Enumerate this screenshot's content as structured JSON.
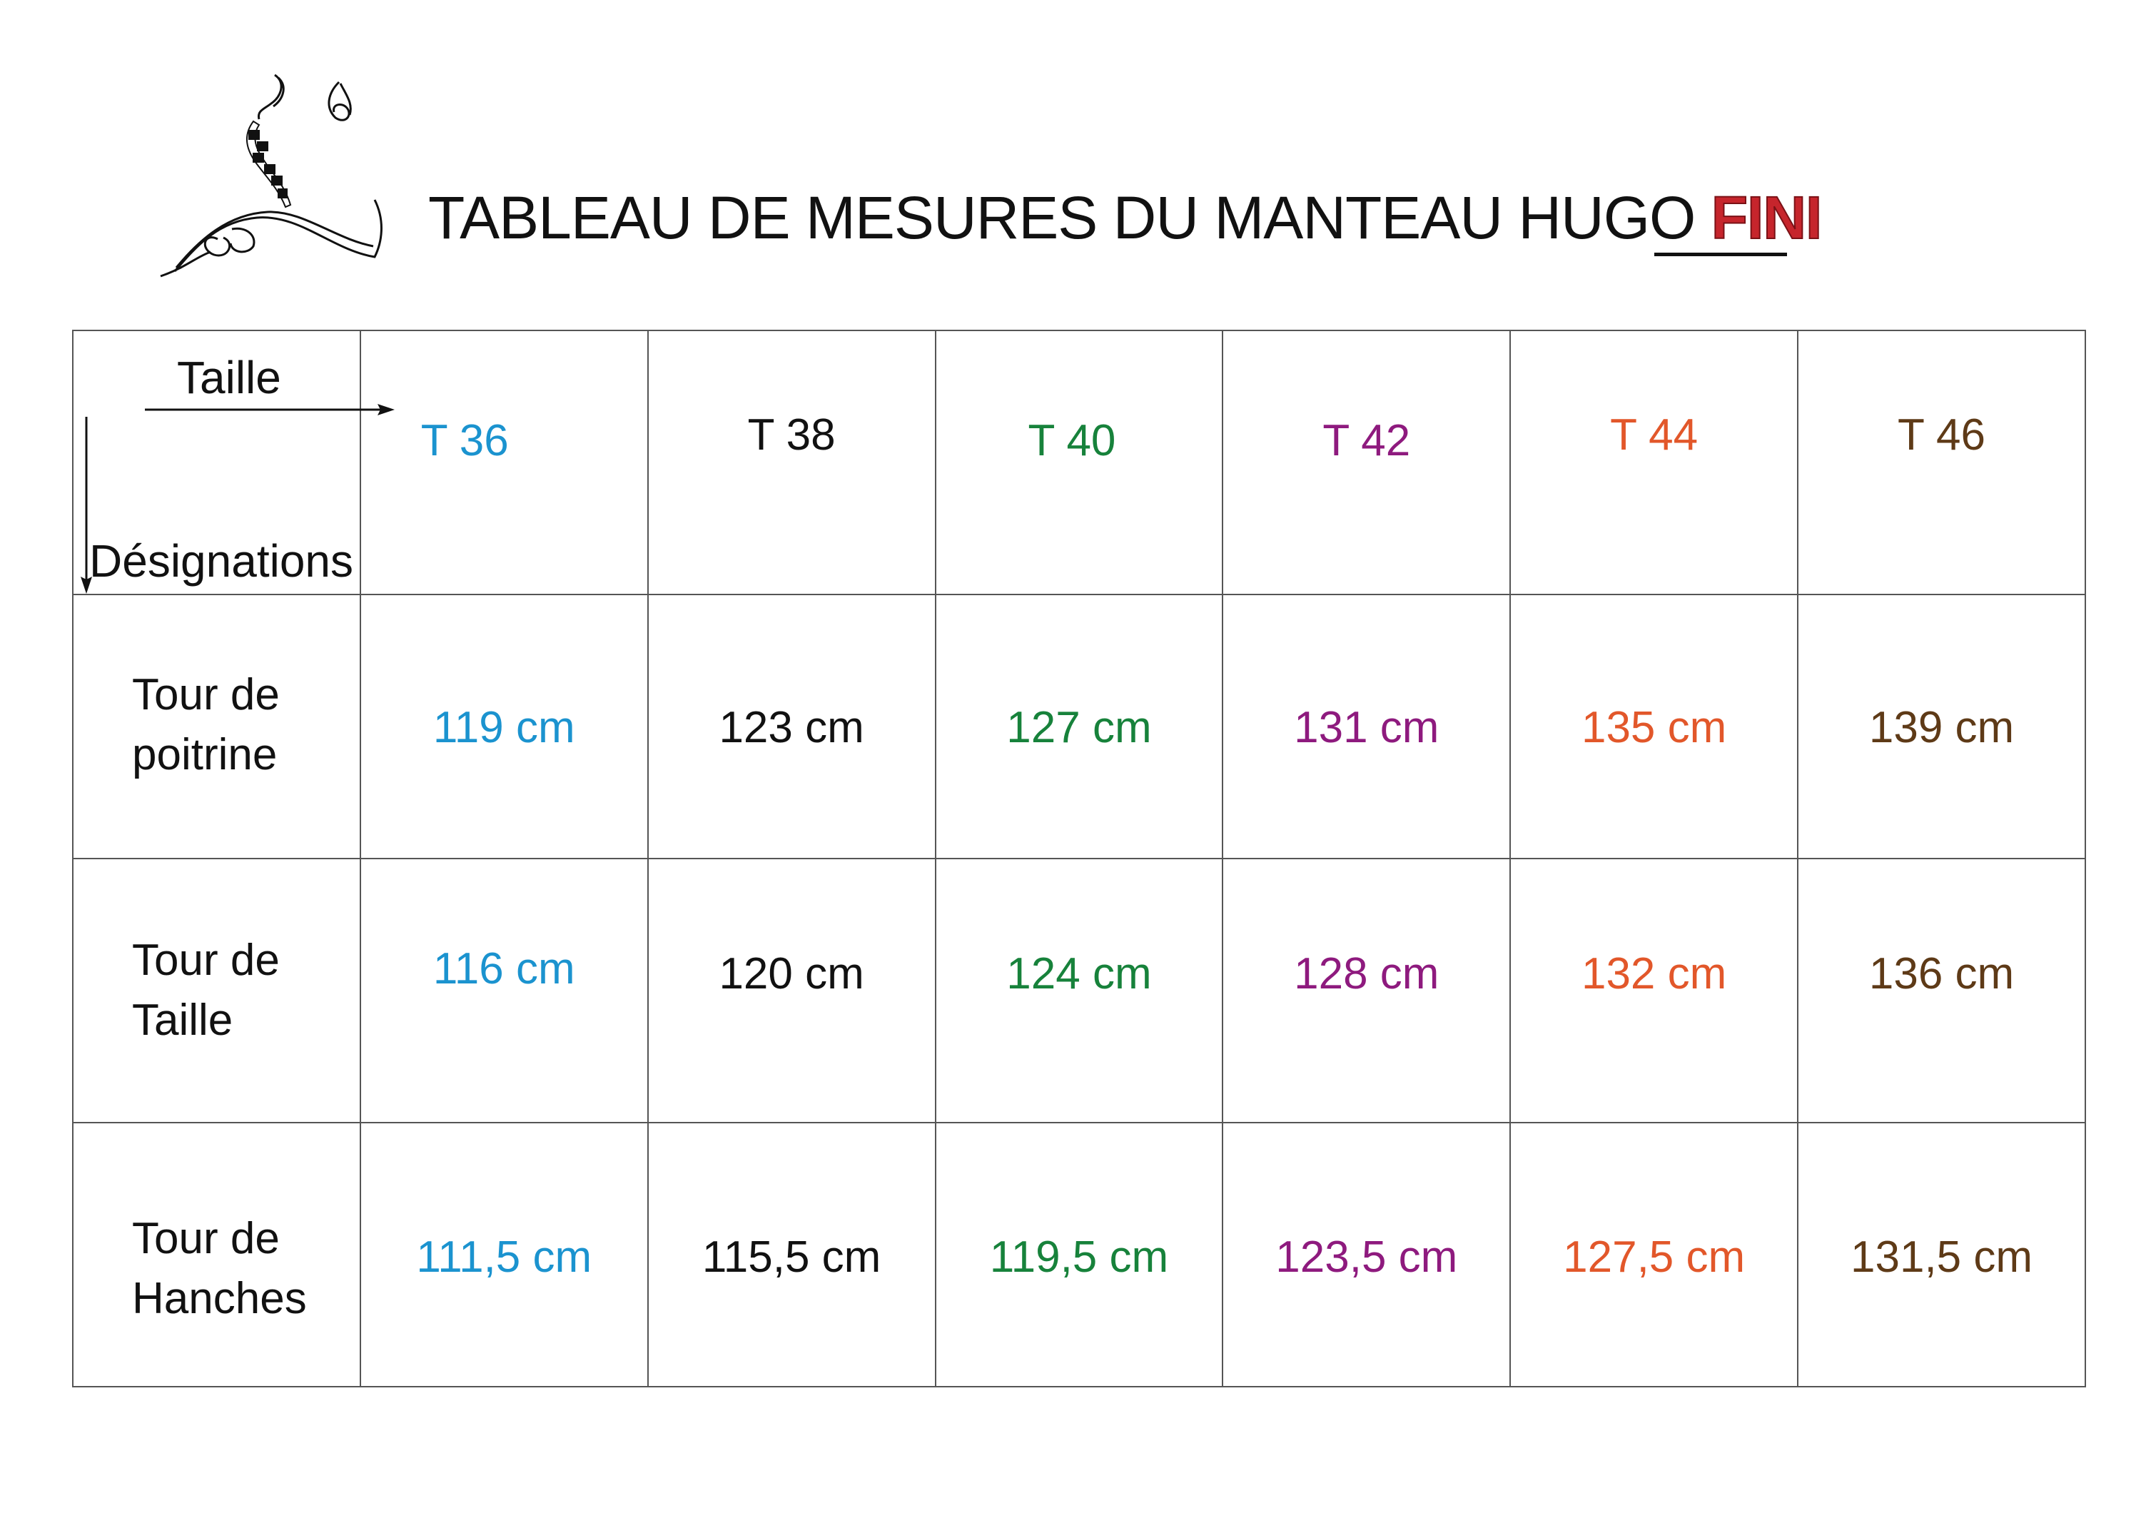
{
  "header": {
    "title": "TABLEAU DE MESURES DU MANTEAU HUGO",
    "status": "FINI"
  },
  "colors": {
    "t36": "#1b93cf",
    "t38": "#111111",
    "t40": "#17823b",
    "t42": "#8e1a7e",
    "t44": "#e2572a",
    "t46": "#5e3a17",
    "status": "#c6252c"
  },
  "table": {
    "corner": {
      "top_label": "Taille",
      "bottom_label": "Désignations"
    },
    "sizes": [
      "T 36",
      "T 38",
      "T 40",
      "T 42",
      "T 44",
      "T 46"
    ],
    "rows": [
      {
        "line1": "Tour de",
        "line2": "poitrine",
        "values": [
          "119 cm",
          "123 cm",
          "127 cm",
          "131 cm",
          "135 cm",
          "139 cm"
        ]
      },
      {
        "line1": "Tour de",
        "line2": "Taille",
        "values": [
          "116 cm",
          "120 cm",
          "124 cm",
          "128 cm",
          "132 cm",
          "136 cm"
        ]
      },
      {
        "line1": "Tour de",
        "line2": "Hanches",
        "values": [
          "111,5 cm",
          "115,5 cm",
          "119,5 cm",
          "123,5 cm",
          "127,5 cm",
          "131,5 cm"
        ]
      }
    ]
  },
  "icons": {
    "logo": "needle-thread-logo-icon",
    "arrow_right": "arrow-right-icon",
    "arrow_down": "arrow-down-icon"
  }
}
